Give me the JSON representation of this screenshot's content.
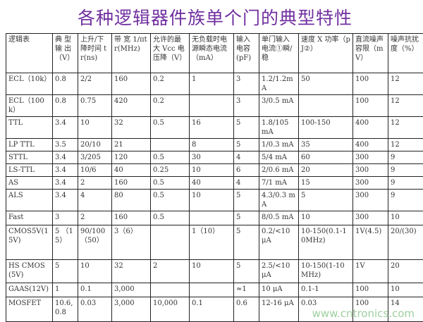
{
  "title": "各种逻辑器件族单个门的典型特性",
  "headers": [
    "逻辑表",
    "典 型 输 出（V）",
    "上升/下降时间 tr(ns)",
    "带 宽 1/πtr(MHz)",
    "允许的最大 Vcc 电压降（V）",
    "无负载时电源瞬态电流（mA）",
    "输入电容(pF)",
    "单门输入电流①瞬/稳",
    "速度 X 功率（pJ②）",
    "直流噪声容限（mV）",
    "噪声抗扰 度（%）"
  ],
  "rows": [
    [
      "ECL（10k）",
      "0.8",
      "2/2",
      "160",
      "0.2",
      "1",
      "3",
      "1.2/1.2mA",
      "50",
      "100",
      "12"
    ],
    [
      "ECL（100k）",
      "0.8",
      "0.75",
      "420",
      "0.2",
      "",
      "3",
      "3/0.5 mA",
      "",
      "100",
      "12"
    ],
    [
      "TTL",
      "3.4",
      "10",
      "32",
      "0.5",
      "16",
      "5",
      "1.8/105 mA",
      "100-150",
      "400",
      "12"
    ],
    [
      "LP TTL",
      "3.5",
      "20/10",
      "21",
      "",
      "8",
      "5",
      "1/0.3 mA",
      "35",
      "400",
      "12"
    ],
    [
      "STTL",
      "3.4",
      "3/205",
      "120",
      "0.5",
      "30",
      "4",
      "5/4 mA",
      "60",
      "300",
      "9"
    ],
    [
      "LS-TTL",
      "3.4",
      "10/6",
      "40",
      "0.25",
      "10",
      "6",
      "2/0.6 mA",
      "20",
      "300",
      "9"
    ],
    [
      "AS",
      "3.4",
      "2",
      "160",
      "0.5",
      "40",
      "4",
      "7/1 mA",
      "15",
      "300",
      "9"
    ],
    [
      "ALS",
      "3.4",
      "4",
      "80",
      "0.5",
      "10",
      "5",
      "4.3/0.3 mA",
      "5",
      "300",
      "9"
    ],
    [
      "Fast",
      "3",
      "2",
      "160",
      "0.5",
      "",
      "5",
      "8/0.5 mA",
      "10",
      "300",
      "10"
    ],
    [
      "CMOS5V(15V)",
      "5 （15）",
      "90/100（50）",
      "3（6）",
      "",
      "1（10）",
      "5",
      "0.2/<10 μA",
      "10-150(0.1-10MHz)",
      "1V(4.5)",
      "20/(30)"
    ],
    [
      "HS CMOS(5V)",
      "5",
      "10",
      "32",
      "2",
      "10",
      "5",
      "2.5/<10 μA",
      "10-150(1-10MHz)",
      "1V",
      "20"
    ],
    [
      "GAAS(12V)",
      "1",
      "0.1",
      "3,000",
      "",
      "",
      "≈1",
      "10 μA",
      "0.1-1",
      "100",
      "10"
    ],
    [
      "MOSFET",
      "10.6, 0.8",
      "0.03",
      "3,000",
      "10,000",
      "0.1",
      "0.6",
      "12-16 μA",
      "0.03",
      "100",
      "14"
    ]
  ],
  "watermark": "www.cntronics.com",
  "colors": {
    "title": "#7030a0",
    "watermark": "#9fd0a0"
  }
}
